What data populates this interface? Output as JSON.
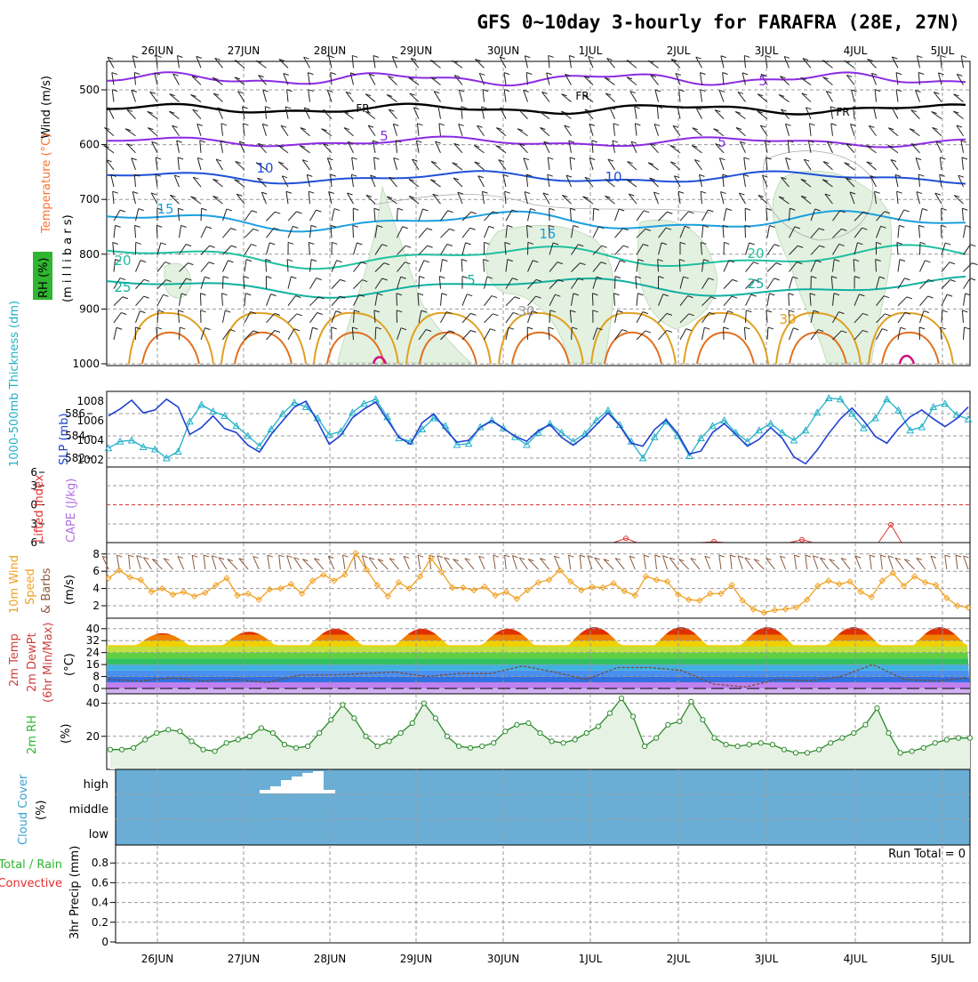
{
  "title": "GFS 0~10day 3-hourly for FARAFRA (28E, 27N)",
  "date_labels": [
    "26JUN",
    "27JUN",
    "28JUN",
    "29JUN",
    "30JUN",
    "1JUL",
    "2JUL",
    "3JUL",
    "4JUL",
    "5JUL"
  ],
  "colors": {
    "rh": "#2fb52f",
    "temp": "#ff7030",
    "wind": "#8b2be2",
    "thickness": "#20b0c8",
    "slp": "#2040d0",
    "lifted": "#e03030",
    "cape": "#b070e0",
    "wind10": "#f0a020",
    "barbs": "#8b5a3c",
    "temp2m": "#d04040",
    "cloud": "#3aa0d0",
    "precip_total": "#2fb52f",
    "precip_conv": "#e03030"
  },
  "panels": {
    "upper": {
      "labels": {
        "rh": "RH (%)",
        "temp": "Temperature (°C)",
        "wind": "Wind (m/s)",
        "unit": "(m i l l i b a r s)"
      },
      "yticks": [
        "500",
        "600",
        "700",
        "800",
        "900",
        "1000"
      ],
      "contour_labels": [
        "5",
        "FR",
        "5",
        "10",
        "15",
        "20",
        "25",
        "FR",
        "5",
        "10",
        "15",
        "20",
        "25",
        "30",
        "5",
        "FR",
        "30"
      ]
    },
    "slp": {
      "labels": {
        "thickness": "1000-500mb Thickness (dm)",
        "slp": "SLP (mb)"
      },
      "yticks_left": [
        "586",
        "584",
        "582"
      ],
      "yticks_right": [
        "1008",
        "1006",
        "1004",
        "1002"
      ]
    },
    "li": {
      "labels": {
        "lifted": "Lifted Index",
        "cape": "CAPE (J/kg)"
      },
      "yticks": [
        "6",
        "3",
        "0",
        "3",
        "6"
      ]
    },
    "wind10": {
      "labels": {
        "main": "10m Wind",
        "speed": "Speed",
        "barbs": "& Barbs",
        "unit": "(m/s)"
      },
      "yticks": [
        "8",
        "6",
        "4",
        "2"
      ]
    },
    "temp2m": {
      "labels": {
        "l1": "2m Temp",
        "l2": "2m DewPt",
        "l3": "(6hr Min/Max)",
        "unit": "(°C)"
      },
      "yticks": [
        "40",
        "32",
        "24",
        "16",
        "8",
        "0"
      ],
      "intermediate_ticks": [
        "36",
        "28",
        "20",
        "12",
        "4"
      ]
    },
    "rh2m": {
      "labels": {
        "main": "2m RH",
        "unit": "(%)"
      },
      "yticks": [
        "40",
        "20"
      ]
    },
    "cloud": {
      "labels": {
        "main": "Cloud Cover",
        "unit": "(%)"
      },
      "levels": [
        "high",
        "middle",
        "low"
      ]
    },
    "precip": {
      "labels": {
        "total": "Total / Rain",
        "conv": "Convective",
        "axis": "3hr Precip (mm)"
      },
      "yticks": [
        "0.8",
        "0.6",
        "0.4",
        "0.2",
        "0"
      ],
      "run_total": "Run Total = 0"
    }
  },
  "chart_data": {
    "type": "line",
    "x_dates": [
      "26JUN",
      "27JUN",
      "28JUN",
      "29JUN",
      "30JUN",
      "1JUL",
      "2JUL",
      "3JUL",
      "4JUL",
      "5JUL"
    ],
    "wind10_speed": [
      5.2,
      6.1,
      5.3,
      5.0,
      3.6,
      4.0,
      3.3,
      3.6,
      3.1,
      3.5,
      4.4,
      5.2,
      3.2,
      3.4,
      2.7,
      3.9,
      4.0,
      4.5,
      3.4,
      4.9,
      5.6,
      4.9,
      5.6,
      8.1,
      6.2,
      4.4,
      3.1,
      4.7,
      4.0,
      5.4,
      7.5,
      5.9,
      4.1,
      4.1,
      3.8,
      4.2,
      3.2,
      3.6,
      2.8,
      3.8,
      4.7,
      5.0,
      6.1,
      4.8,
      3.8,
      4.2,
      4.1,
      4.6,
      3.7,
      3.2,
      5.4,
      5.0,
      4.8,
      3.3,
      2.7,
      2.6,
      3.4,
      3.4,
      4.4,
      2.6,
      1.6,
      1.2,
      1.5,
      1.6,
      1.8,
      2.7,
      4.3,
      4.9,
      4.5,
      4.8,
      3.6,
      3.0,
      4.9,
      5.8,
      4.3,
      5.4,
      4.7,
      4.4,
      2.9,
      2.0,
      1.8
    ],
    "rh2m": [
      12,
      12,
      13,
      18,
      22,
      24,
      23,
      17,
      12,
      11,
      16,
      18,
      20,
      25,
      22,
      15,
      13,
      14,
      22,
      30,
      39,
      31,
      20,
      14,
      17,
      22,
      28,
      40,
      31,
      20,
      14,
      13,
      14,
      16,
      23,
      27,
      28,
      22,
      17,
      16,
      18,
      22,
      26,
      34,
      43,
      32,
      14,
      19,
      27,
      29,
      41,
      30,
      19,
      15,
      14,
      15,
      16,
      15,
      12,
      10,
      10,
      12,
      16,
      19,
      22,
      27,
      37,
      22,
      10,
      11,
      13,
      16,
      18,
      19,
      19
    ],
    "slp_mb": [
      1006.5,
      1007.2,
      1008.1,
      1006.8,
      1007.1,
      1008.2,
      1007.4,
      1004.6,
      1005.3,
      1006.5,
      1005.2,
      1004.8,
      1003.5,
      1002.8,
      1004.6,
      1006.0,
      1007.4,
      1008.0,
      1005.9,
      1003.6,
      1004.5,
      1006.3,
      1007.2,
      1007.9,
      1006.1,
      1004.3,
      1003.6,
      1005.8,
      1006.7,
      1005.1,
      1003.8,
      1004.0,
      1005.3,
      1006.0,
      1005.2,
      1004.4,
      1003.9,
      1005.0,
      1005.6,
      1004.3,
      1003.5,
      1004.4,
      1005.6,
      1006.8,
      1005.5,
      1003.7,
      1003.4,
      1005.1,
      1006.1,
      1004.7,
      1002.6,
      1002.9,
      1004.8,
      1005.7,
      1004.6,
      1003.4,
      1004.1,
      1005.3,
      1004.2,
      1002.3,
      1001.6,
      1003.0,
      1004.7,
      1006.2,
      1007.3,
      1006.0,
      1004.4,
      1003.7,
      1005.2,
      1006.4,
      1007.1,
      1006.2,
      1005.4,
      1006.2,
      1007.4
    ],
    "thickness_dm": [
      582.9,
      583.5,
      583.6,
      583.0,
      582.8,
      582.0,
      582.6,
      585.3,
      586.8,
      586.2,
      585.8,
      584.9,
      584.0,
      583.1,
      584.6,
      586.0,
      587.0,
      586.6,
      585.6,
      584.1,
      584.4,
      586.1,
      586.9,
      587.3,
      585.7,
      583.8,
      583.5,
      584.6,
      585.6,
      584.9,
      583.2,
      583.3,
      584.8,
      585.4,
      584.7,
      583.9,
      583.2,
      584.3,
      585.1,
      584.3,
      583.5,
      584.2,
      585.4,
      586.3,
      585.0,
      583.5,
      582.0,
      583.9,
      585.3,
      584.0,
      582.2,
      583.8,
      584.9,
      585.4,
      584.3,
      583.5,
      584.5,
      585.1,
      584.3,
      583.6,
      584.5,
      586.1,
      587.4,
      587.3,
      586.0,
      584.7,
      585.6,
      587.3,
      586.3,
      584.5,
      584.8,
      586.6,
      586.9,
      585.9,
      585.5
    ],
    "lifted_index_spikes": [
      {
        "x": "1JUL",
        "value": -5.4
      },
      {
        "x": "2JUL",
        "value": -6.0
      },
      {
        "x": "3JUL",
        "value": -5.6
      },
      {
        "x": "4JUL",
        "value": -3.2
      }
    ],
    "temp2m_max": [
      37,
      38,
      40,
      40,
      40,
      41,
      41,
      41,
      41
    ],
    "dewpoint": [
      6,
      5,
      7,
      5,
      6,
      4,
      9,
      9,
      10,
      11,
      8,
      10,
      10,
      15,
      11,
      6,
      14,
      14,
      12,
      3,
      1,
      6,
      5,
      8,
      16,
      6,
      5,
      7
    ],
    "precip_total_run": 0
  }
}
